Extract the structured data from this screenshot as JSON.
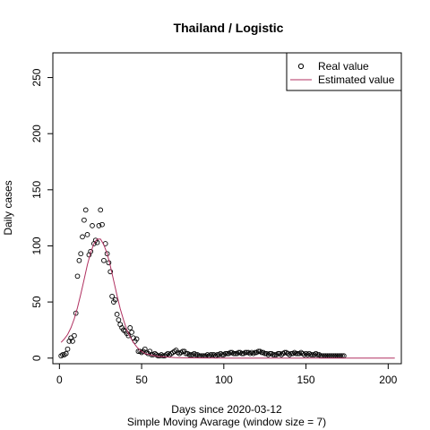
{
  "chart_data": {
    "type": "scatter",
    "title": "Thailand / Logistic",
    "xlabel": "Days since 2020-03-12",
    "subtitle": "Simple Moving Avarage (window size = 7)",
    "ylabel": "Daily cases",
    "xlim": [
      -4,
      208
    ],
    "ylim": [
      -5,
      272
    ],
    "xticks": [
      0,
      50,
      100,
      150,
      200
    ],
    "yticks": [
      0,
      50,
      100,
      150,
      200,
      250
    ],
    "legend_position": "top-right",
    "series": [
      {
        "name": "Real value",
        "kind": "points",
        "color": "#000000",
        "x": [
          1,
          2,
          3,
          4,
          5,
          6,
          7,
          8,
          9,
          10,
          11,
          12,
          13,
          14,
          15,
          16,
          17,
          18,
          19,
          20,
          21,
          22,
          23,
          24,
          25,
          26,
          27,
          28,
          29,
          30,
          31,
          32,
          33,
          34,
          35,
          36,
          37,
          38,
          39,
          40,
          41,
          42,
          43,
          44,
          45,
          46,
          47,
          48,
          49,
          50,
          51,
          52,
          53,
          54,
          55,
          56,
          57,
          58,
          59,
          60,
          61,
          62,
          63,
          64,
          65,
          66,
          67,
          68,
          69,
          70,
          71,
          72,
          73,
          74,
          75,
          76,
          77,
          78,
          79,
          80,
          81,
          82,
          83,
          84,
          85,
          86,
          87,
          88,
          89,
          90,
          91,
          92,
          93,
          94,
          95,
          96,
          97,
          98,
          99,
          100,
          101,
          102,
          103,
          104,
          105,
          106,
          107,
          108,
          109,
          110,
          111,
          112,
          113,
          114,
          115,
          116,
          117,
          118,
          119,
          120,
          121,
          122,
          123,
          124,
          125,
          126,
          127,
          128,
          129,
          130,
          131,
          132,
          133,
          134,
          135,
          136,
          137,
          138,
          139,
          140,
          141,
          142,
          143,
          144,
          145,
          146,
          147,
          148,
          149,
          150,
          151,
          152,
          153,
          154,
          155,
          156,
          157,
          158,
          159,
          160,
          161,
          162,
          163,
          164,
          165,
          166,
          167,
          168,
          169,
          170,
          171,
          172,
          173
        ],
        "y": [
          2,
          3,
          3,
          4,
          8,
          15,
          18,
          15,
          20,
          40,
          73,
          87,
          93,
          108,
          123,
          132,
          110,
          92,
          95,
          118,
          102,
          105,
          103,
          118,
          132,
          119,
          87,
          102,
          93,
          85,
          77,
          55,
          50,
          52,
          39,
          34,
          30,
          27,
          25,
          24,
          22,
          20,
          27,
          23,
          18,
          15,
          17,
          6,
          6,
          5,
          6,
          8,
          5,
          4,
          6,
          3,
          3,
          4,
          3,
          2,
          2,
          3,
          2,
          2,
          3,
          4,
          3,
          4,
          5,
          6,
          7,
          5,
          4,
          5,
          6,
          6,
          4,
          4,
          3,
          3,
          3,
          4,
          3,
          3,
          2,
          2,
          2,
          2,
          2,
          3,
          2,
          3,
          3,
          3,
          2,
          3,
          3,
          4,
          3,
          3,
          4,
          4,
          4,
          5,
          5,
          4,
          4,
          4,
          5,
          5,
          4,
          4,
          5,
          5,
          5,
          4,
          5,
          4,
          5,
          5,
          6,
          6,
          5,
          5,
          4,
          4,
          3,
          4,
          4,
          3,
          3,
          3,
          4,
          4,
          3,
          4,
          5,
          5,
          4,
          3,
          4,
          4,
          5,
          4,
          4,
          4,
          5,
          4,
          3,
          4,
          3,
          4,
          3,
          3,
          3,
          4,
          3,
          3,
          2,
          2,
          2,
          2,
          2,
          2,
          2,
          2,
          2,
          2,
          2,
          2,
          2,
          2,
          2
        ]
      },
      {
        "name": "Estimated value",
        "kind": "line",
        "color": "#b03060",
        "x": [
          1,
          3,
          5,
          7,
          9,
          11,
          13,
          15,
          17,
          19,
          21,
          23,
          25,
          27,
          29,
          31,
          33,
          35,
          37,
          39,
          41,
          43,
          45,
          47,
          49,
          52,
          55,
          60,
          65,
          70,
          75,
          80,
          90,
          100,
          120,
          140,
          160,
          180,
          204
        ],
        "y": [
          14,
          17,
          21,
          27,
          35,
          45,
          57,
          70,
          83,
          94,
          102,
          106,
          106,
          101,
          93,
          82,
          69,
          56,
          44,
          34,
          25,
          19,
          14,
          10,
          7,
          4,
          3,
          1.5,
          1,
          0.5,
          0.3,
          0.2,
          0.1,
          0,
          0,
          0,
          0,
          0,
          0
        ]
      }
    ]
  }
}
